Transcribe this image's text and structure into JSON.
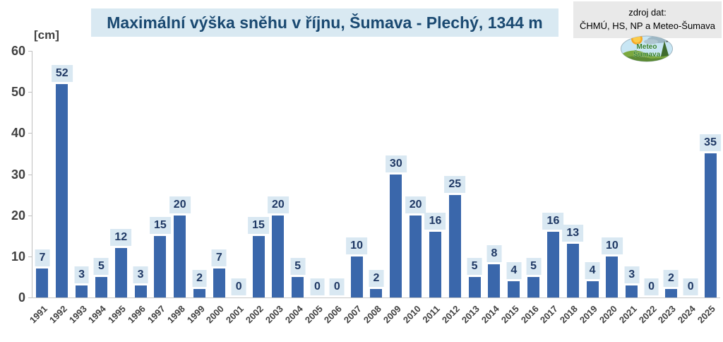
{
  "header": {
    "title": "Maximální výška sněhu v říjnu, Šumava - Plechý, 1344 m",
    "source_label": "zdroj dat:",
    "source_values": "ČHMÚ, HS, NP a Meteo-Šumava"
  },
  "logo": {
    "line1": "Meteo",
    "line2": "Šumava"
  },
  "chart_data": {
    "type": "bar",
    "title": "Maximální výška sněhu v říjnu, Šumava - Plechý, 1344 m",
    "xlabel": "",
    "ylabel": "[cm]",
    "ylim": [
      0,
      60
    ],
    "yticks": [
      0,
      10,
      20,
      30,
      40,
      50,
      60
    ],
    "grid": false,
    "legend": false,
    "data_labels": true,
    "categories": [
      "1991",
      "1992",
      "1993",
      "1994",
      "1995",
      "1996",
      "1997",
      "1998",
      "1999",
      "2000",
      "2001",
      "2002",
      "2003",
      "2004",
      "2005",
      "2006",
      "2007",
      "2008",
      "2009",
      "2010",
      "2011",
      "2012",
      "2013",
      "2014",
      "2015",
      "2016",
      "2017",
      "2018",
      "2019",
      "2020",
      "2021",
      "2022",
      "2023",
      "2024",
      "2025"
    ],
    "values": [
      7,
      52,
      3,
      5,
      12,
      3,
      15,
      20,
      2,
      7,
      0,
      15,
      20,
      5,
      0,
      0,
      10,
      2,
      30,
      20,
      16,
      25,
      5,
      8,
      4,
      5,
      16,
      13,
      4,
      10,
      3,
      0,
      2,
      0,
      35
    ],
    "colors": {
      "bar": "#3A67AB",
      "value_label_bg": "#D9E8F2",
      "value_label_text": "#1F3864",
      "title_text": "#1A4971",
      "title_bg": "#D9E9F2",
      "axis_text": "#404040"
    }
  }
}
